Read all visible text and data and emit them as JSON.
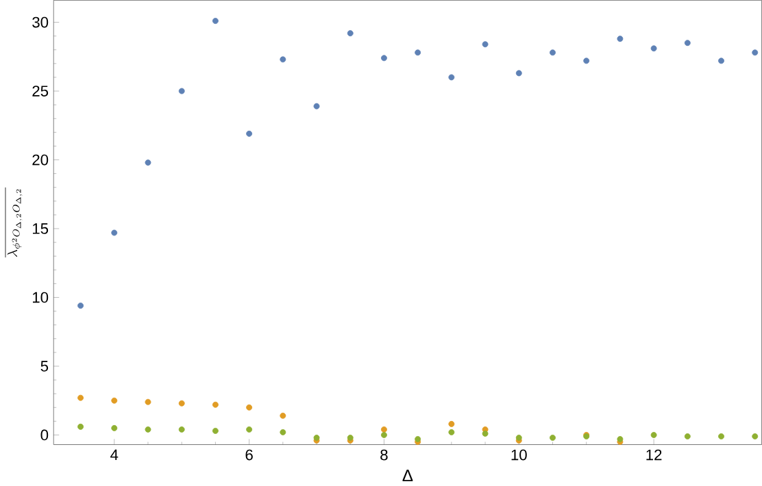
{
  "chart_data": {
    "type": "scatter",
    "xlabel": "Δ",
    "ylabel": "\\overline{\\lambda_{\\phi^2 O_{\\Delta,2}O_{\\Delta,2}}}",
    "marker": "circle",
    "xlim": [
      3.1,
      13.6
    ],
    "ylim": [
      -0.7,
      31.6
    ],
    "xticks": [
      4,
      6,
      8,
      10,
      12
    ],
    "yticks": [
      0,
      5,
      10,
      15,
      20,
      25,
      30
    ],
    "grid": false,
    "series": [
      {
        "color": "#5e81b5",
        "x": [
          3.5,
          4,
          4.5,
          5,
          5.5,
          6,
          6.5,
          7,
          7.5,
          8,
          8.5,
          9,
          9.5,
          10,
          10.5,
          11,
          11.5,
          12,
          12.5,
          13,
          13.5
        ],
        "values": [
          9.4,
          14.7,
          19.8,
          25.0,
          30.1,
          21.9,
          27.3,
          23.9,
          29.2,
          27.4,
          27.8,
          26.0,
          28.4,
          26.3,
          27.8,
          27.2,
          28.8,
          28.1,
          28.5,
          27.2,
          27.8
        ]
      },
      {
        "color": "#e19c24",
        "x": [
          3.5,
          4,
          4.5,
          5,
          5.5,
          6,
          6.5,
          7,
          7.5,
          8,
          8.5,
          9,
          9.5,
          10,
          10.5,
          11,
          11.5
        ],
        "values": [
          2.7,
          2.5,
          2.4,
          2.3,
          2.2,
          2.0,
          1.4,
          -0.4,
          -0.4,
          0.4,
          -0.5,
          0.8,
          0.4,
          -0.4,
          null,
          0.0,
          -0.5
        ]
      },
      {
        "color": "#8fb032",
        "x": [
          3.5,
          4,
          4.5,
          5,
          5.5,
          6,
          6.5,
          7,
          7.5,
          8,
          8.5,
          9,
          9.5,
          10,
          10.5,
          11,
          11.5,
          12,
          12.5,
          13,
          13.5
        ],
        "values": [
          0.6,
          0.5,
          0.4,
          0.4,
          0.3,
          0.4,
          0.2,
          -0.2,
          -0.2,
          0.0,
          -0.3,
          0.2,
          0.1,
          -0.2,
          -0.2,
          -0.1,
          -0.3,
          0.0,
          -0.1,
          -0.1,
          -0.1
        ]
      }
    ]
  }
}
